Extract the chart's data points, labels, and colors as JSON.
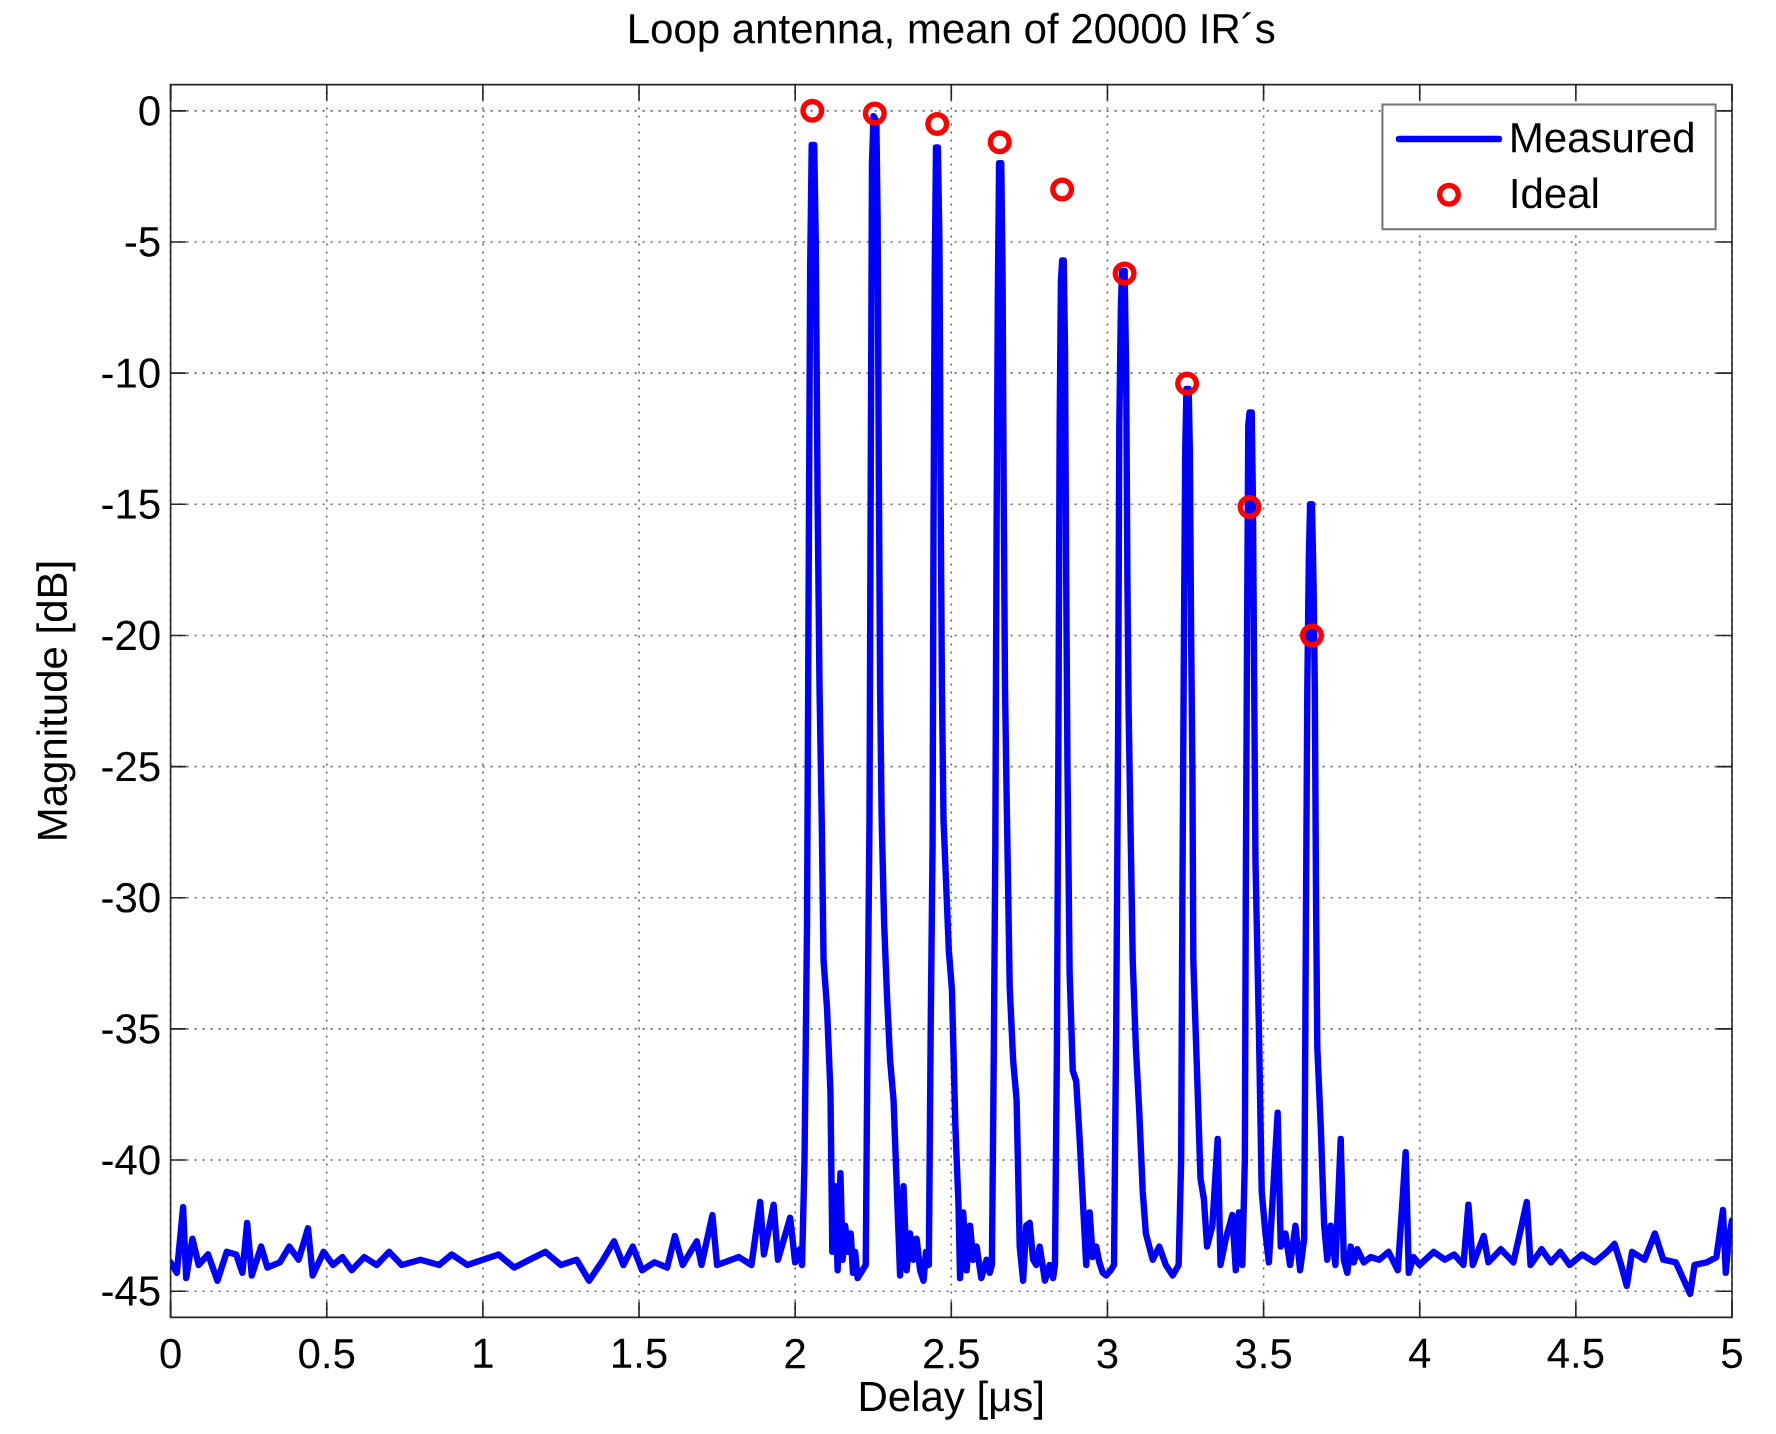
{
  "chart_data": {
    "type": "line",
    "title": "Loop antenna, mean of 20000 IR´s",
    "xlabel": "Delay [μs]",
    "ylabel": "Magnitude [dB]",
    "xlim": [
      0,
      5
    ],
    "ylim": [
      -46,
      1
    ],
    "xticks": [
      0,
      0.5,
      1,
      1.5,
      2,
      2.5,
      3,
      3.5,
      4,
      4.5,
      5
    ],
    "yticks": [
      -45,
      -40,
      -35,
      -30,
      -25,
      -20,
      -15,
      -10,
      -5,
      0
    ],
    "grid": true,
    "legend": "top right",
    "series": [
      {
        "name": "Measured",
        "color": "#0000ff",
        "x": [
          0,
          0.02,
          0.04,
          0.05,
          0.07,
          0.09,
          0.12,
          0.15,
          0.18,
          0.21,
          0.23,
          0.245,
          0.26,
          0.29,
          0.31,
          0.35,
          0.38,
          0.41,
          0.44,
          0.455,
          0.49,
          0.52,
          0.55,
          0.58,
          0.62,
          0.66,
          0.7,
          0.74,
          0.8,
          0.86,
          0.9,
          0.95,
          1.0,
          1.05,
          1.1,
          1.15,
          1.2,
          1.25,
          1.3,
          1.34,
          1.38,
          1.42,
          1.45,
          1.48,
          1.51,
          1.55,
          1.59,
          1.615,
          1.64,
          1.685,
          1.7,
          1.735,
          1.75,
          1.82,
          1.86,
          1.888,
          1.9,
          1.931,
          1.945,
          1.984,
          2.0,
          2.015,
          2.022,
          2.03,
          2.038,
          2.044,
          2.048,
          2.053,
          2.061,
          2.066,
          2.072,
          2.078,
          2.085,
          2.091,
          2.102,
          2.113,
          2.119,
          2.128,
          2.136,
          2.145,
          2.152,
          2.16,
          2.17,
          2.178,
          2.185,
          2.192,
          2.2,
          2.226,
          2.232,
          2.238,
          2.242,
          2.246,
          2.251,
          2.26,
          2.264,
          2.268,
          2.272,
          2.277,
          2.285,
          2.294,
          2.304,
          2.315,
          2.326,
          2.336,
          2.347,
          2.357,
          2.368,
          2.379,
          2.389,
          2.4,
          2.411,
          2.419,
          2.428,
          2.434,
          2.44,
          2.443,
          2.447,
          2.451,
          2.457,
          2.462,
          2.466,
          2.47,
          2.475,
          2.492,
          2.502,
          2.513,
          2.523,
          2.528,
          2.538,
          2.549,
          2.56,
          2.57,
          2.581,
          2.596,
          2.613,
          2.623,
          2.63,
          2.636,
          2.641,
          2.645,
          2.649,
          2.653,
          2.66,
          2.664,
          2.668,
          2.672,
          2.677,
          2.687,
          2.698,
          2.709,
          2.719,
          2.73,
          2.74,
          2.751,
          2.762,
          2.772,
          2.783,
          2.8,
          2.815,
          2.826,
          2.832,
          2.838,
          2.843,
          2.847,
          2.851,
          2.855,
          2.86,
          2.864,
          2.868,
          2.872,
          2.879,
          2.889,
          2.9,
          2.911,
          2.921,
          2.932,
          2.943,
          2.953,
          2.964,
          2.974,
          2.985,
          2.996,
          3.011,
          3.021,
          3.028,
          3.034,
          3.038,
          3.043,
          3.047,
          3.055,
          3.06,
          3.064,
          3.068,
          3.081,
          3.091,
          3.102,
          3.113,
          3.123,
          3.145,
          3.166,
          3.187,
          3.209,
          3.228,
          3.236,
          3.24,
          3.245,
          3.249,
          3.253,
          3.26,
          3.264,
          3.268,
          3.272,
          3.275,
          3.287,
          3.298,
          3.309,
          3.319,
          3.336,
          3.353,
          3.362,
          3.379,
          3.4,
          3.411,
          3.421,
          3.432,
          3.44,
          3.443,
          3.447,
          3.451,
          3.455,
          3.462,
          3.466,
          3.47,
          3.474,
          3.485,
          3.494,
          3.506,
          3.517,
          3.528,
          3.545,
          3.555,
          3.57,
          3.585,
          3.602,
          3.617,
          3.63,
          3.636,
          3.64,
          3.645,
          3.649,
          3.655,
          3.66,
          3.664,
          3.668,
          3.672,
          3.683,
          3.694,
          3.704,
          3.715,
          3.73,
          3.747,
          3.757,
          3.768,
          3.779,
          3.789,
          3.8,
          3.821,
          3.843,
          3.87,
          3.9,
          3.93,
          3.955,
          3.965,
          3.98,
          4.0,
          4.045,
          4.08,
          4.11,
          4.14,
          4.156,
          4.17,
          4.205,
          4.22,
          4.26,
          4.3,
          4.343,
          4.355,
          4.39,
          4.42,
          4.45,
          4.48,
          4.52,
          4.56,
          4.6,
          4.624,
          4.645,
          4.663,
          4.68,
          4.72,
          4.753,
          4.78,
          4.82,
          4.866,
          4.88,
          4.92,
          4.95,
          4.971,
          4.98,
          4.99,
          5.0
        ],
        "values": [
          -43.9,
          -44.3,
          -41.8,
          -44.5,
          -43.0,
          -44.0,
          -43.6,
          -44.6,
          -43.5,
          -43.6,
          -44.3,
          -42.4,
          -44.4,
          -43.3,
          -44.1,
          -43.9,
          -43.3,
          -43.8,
          -42.6,
          -44.4,
          -43.5,
          -44.0,
          -43.7,
          -44.2,
          -43.7,
          -44.0,
          -43.5,
          -44.0,
          -43.8,
          -44.0,
          -43.6,
          -44.0,
          -43.8,
          -43.6,
          -44.1,
          -43.8,
          -43.5,
          -44.0,
          -43.8,
          -44.6,
          -43.9,
          -43.1,
          -44.0,
          -43.3,
          -44.2,
          -43.9,
          -44.1,
          -42.9,
          -44.0,
          -43.1,
          -44.0,
          -42.1,
          -44.0,
          -43.7,
          -44.0,
          -41.6,
          -43.6,
          -41.7,
          -43.8,
          -42.2,
          -43.9,
          -43.4,
          -44.0,
          -40.0,
          -31.0,
          -16.0,
          -6.0,
          -1.3,
          -1.3,
          -5.0,
          -15.0,
          -22.0,
          -27.0,
          -32.4,
          -34.2,
          -37.4,
          -43.5,
          -41.0,
          -44.2,
          -40.5,
          -43.8,
          -42.5,
          -43.5,
          -42.8,
          -44.3,
          -43.5,
          -44.5,
          -44.0,
          -35.0,
          -27.0,
          -14.0,
          -2.0,
          -0.2,
          -0.4,
          -4.0,
          -14.0,
          -22.0,
          -27.0,
          -31.0,
          -33.7,
          -36.2,
          -37.7,
          -41.2,
          -44.4,
          -41.0,
          -44.2,
          -42.8,
          -43.8,
          -43.0,
          -44.2,
          -44.6,
          -43.5,
          -44.0,
          -35.0,
          -28.0,
          -16.0,
          -6.0,
          -1.4,
          -1.4,
          -5.0,
          -15.0,
          -22.0,
          -27.0,
          -32.0,
          -33.5,
          -38.7,
          -41.7,
          -44.5,
          -42.0,
          -44.2,
          -42.5,
          -43.8,
          -43.3,
          -44.5,
          -43.8,
          -44.3,
          -44.0,
          -36.0,
          -28.0,
          -16.0,
          -7.0,
          -2.0,
          -2.0,
          -6.0,
          -15.0,
          -22.0,
          -26.0,
          -33.4,
          -36.2,
          -37.7,
          -43.3,
          -44.6,
          -42.5,
          -42.4,
          -43.8,
          -44.0,
          -43.3,
          -44.6,
          -44.0,
          -44.5,
          -44.0,
          -36.0,
          -24.0,
          -12.0,
          -6.5,
          -5.7,
          -5.7,
          -9.0,
          -18.0,
          -25.0,
          -32.9,
          -36.6,
          -37.0,
          -39.2,
          -41.5,
          -44.0,
          -42.0,
          -43.7,
          -43.3,
          -43.9,
          -44.3,
          -44.4,
          -44.2,
          -44.0,
          -35.0,
          -24.0,
          -12.0,
          -7.5,
          -6.1,
          -6.1,
          -10.0,
          -18.0,
          -23.0,
          -32.4,
          -35.7,
          -38.2,
          -41.2,
          -42.8,
          -43.8,
          -43.3,
          -44.0,
          -44.4,
          -44.0,
          -40.0,
          -30.0,
          -20.0,
          -13.0,
          -10.6,
          -10.6,
          -13.0,
          -20.0,
          -25.0,
          -32.4,
          -36.7,
          -40.7,
          -41.5,
          -43.3,
          -42.5,
          -39.2,
          -44.0,
          -43.0,
          -42.1,
          -44.2,
          -42.0,
          -44.0,
          -40.0,
          -30.0,
          -20.0,
          -12.0,
          -11.5,
          -11.5,
          -15.0,
          -22.0,
          -28.6,
          -35.0,
          -41.2,
          -42.8,
          -43.9,
          -41.7,
          -38.2,
          -43.3,
          -42.8,
          -44.0,
          -42.5,
          -44.2,
          -43.0,
          -30.0,
          -22.0,
          -17.0,
          -15.0,
          -15.0,
          -18.0,
          -22.0,
          -30.0,
          -35.7,
          -38.7,
          -42.5,
          -43.8,
          -42.5,
          -44.0,
          -39.2,
          -43.8,
          -44.3,
          -43.3,
          -43.9,
          -43.4,
          -43.9,
          -43.7,
          -43.8,
          -43.5,
          -44.2,
          -39.7,
          -44.3,
          -43.7,
          -44.0,
          -43.5,
          -43.8,
          -43.6,
          -44.0,
          -41.7,
          -44.0,
          -42.9,
          -43.9,
          -43.4,
          -43.9,
          -41.6,
          -44.0,
          -43.4,
          -43.9,
          -43.5,
          -44.0,
          -43.6,
          -43.9,
          -43.5,
          -43.2,
          -44.0,
          -44.8,
          -43.5,
          -43.8,
          -42.8,
          -43.8,
          -43.9,
          -45.1,
          -44.0,
          -43.9,
          -43.7,
          -41.9,
          -44.3,
          -43.0,
          -42.3
        ]
      },
      {
        "name": "Ideal",
        "color": "#ff0000",
        "type": "scatter",
        "marker": "circle",
        "x": [
          2.055,
          2.255,
          2.455,
          2.655,
          2.855,
          3.055,
          3.255,
          3.455,
          3.655
        ],
        "values": [
          0,
          -0.1,
          -0.5,
          -1.2,
          -3.0,
          -6.2,
          -10.4,
          -15.1,
          -20.0
        ]
      }
    ]
  }
}
